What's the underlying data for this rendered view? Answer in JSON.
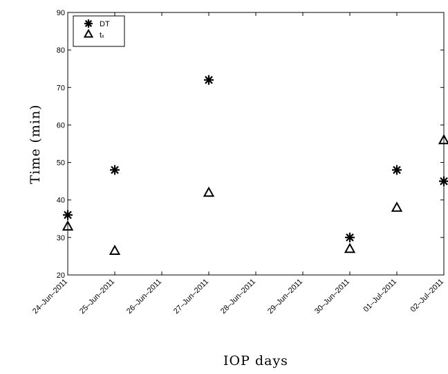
{
  "chart_data": {
    "type": "scatter",
    "xlabel": "IOP days",
    "ylabel": "Time (min)",
    "ylim": [
      20,
      90
    ],
    "yticks": [
      "20",
      "30",
      "40",
      "50",
      "60",
      "70",
      "80",
      "90"
    ],
    "categories": [
      "24–Jun–2011",
      "25–Jun–2011",
      "26–Jun–2011",
      "27–Jun–2011",
      "28–Jun–2011",
      "29–Jun–2011",
      "30–Jun–2011",
      "01–Jul–2011",
      "02–Jul–2011"
    ],
    "legend": {
      "position": "top-left"
    },
    "series": [
      {
        "name": "DT",
        "marker": "asterisk",
        "x": [
          0,
          1,
          3,
          6,
          7,
          8
        ],
        "values": [
          36,
          48,
          72,
          30,
          48,
          45
        ]
      },
      {
        "name": "tₓ",
        "marker": "triangle",
        "x": [
          0,
          1,
          3,
          6,
          7,
          8
        ],
        "values": [
          33,
          26.5,
          42,
          27,
          38,
          56
        ]
      }
    ]
  }
}
